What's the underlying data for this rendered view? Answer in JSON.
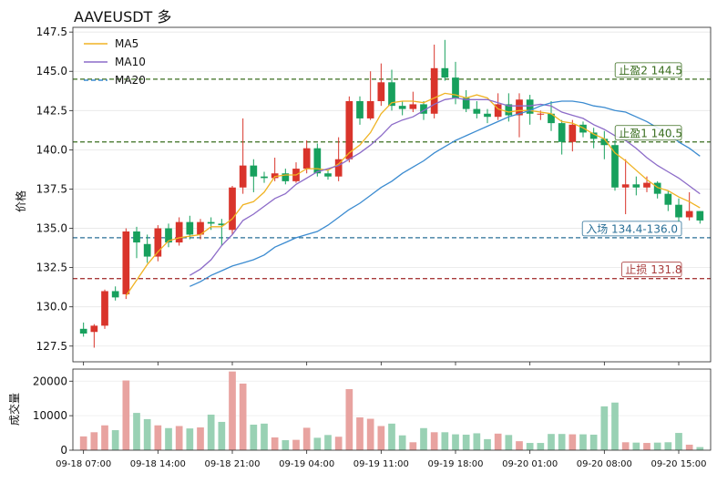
{
  "chart_data": [
    {
      "type": "candlestick",
      "title": "AAVEUSDT  多",
      "ylabel": "价格",
      "ylim": [
        126.5,
        147.8
      ],
      "yticks": [
        "127.5",
        "130.0",
        "132.5",
        "135.0",
        "137.5",
        "140.0",
        "142.5",
        "145.0",
        "147.5"
      ],
      "grid": true,
      "legend": {
        "position": "top-left",
        "entries": [
          "MA5",
          "MA10",
          "MA20"
        ]
      },
      "colors": {
        "up": "#d9342b",
        "down": "#17a05d",
        "ma5": "#f0b323",
        "ma10": "#8c6bc8",
        "ma20": "#3b8bd0"
      },
      "candles": [
        [
          128.6,
          128.3,
          129.0,
          128.1
        ],
        [
          128.4,
          128.8,
          128.9,
          127.4
        ],
        [
          128.8,
          131.0,
          131.1,
          128.6
        ],
        [
          131.0,
          130.6,
          131.3,
          130.4
        ],
        [
          130.8,
          134.8,
          135.0,
          130.5
        ],
        [
          134.8,
          134.1,
          135.1,
          133.1
        ],
        [
          134.0,
          133.2,
          134.6,
          132.8
        ],
        [
          133.2,
          135.0,
          135.2,
          132.9
        ],
        [
          135.0,
          134.1,
          135.3,
          133.8
        ],
        [
          134.1,
          135.4,
          135.7,
          133.9
        ],
        [
          135.4,
          134.6,
          135.8,
          134.3
        ],
        [
          134.6,
          135.4,
          135.6,
          134.3
        ],
        [
          135.4,
          135.3,
          135.7,
          134.9
        ],
        [
          135.3,
          135.2,
          135.6,
          133.9
        ],
        [
          134.9,
          137.6,
          137.7,
          134.6
        ],
        [
          137.6,
          139.0,
          142.0,
          137.2
        ],
        [
          139.0,
          138.3,
          139.4,
          137.3
        ],
        [
          138.3,
          138.2,
          138.6,
          137.9
        ],
        [
          138.2,
          138.5,
          139.5,
          138.0
        ],
        [
          138.5,
          138.0,
          138.8,
          137.8
        ],
        [
          138.0,
          138.8,
          139.2,
          137.9
        ],
        [
          138.8,
          140.1,
          140.6,
          138.5
        ],
        [
          140.1,
          138.5,
          140.4,
          138.3
        ],
        [
          138.5,
          138.3,
          138.7,
          138.1
        ],
        [
          138.3,
          139.4,
          140.8,
          138.0
        ],
        [
          139.4,
          143.1,
          143.4,
          139.2
        ],
        [
          143.1,
          142.0,
          143.4,
          141.6
        ],
        [
          142.0,
          143.1,
          145.0,
          141.9
        ],
        [
          143.1,
          144.3,
          145.5,
          142.8
        ],
        [
          144.3,
          142.8,
          145.1,
          142.5
        ],
        [
          142.8,
          142.6,
          143.1,
          142.2
        ],
        [
          142.6,
          142.9,
          143.7,
          142.4
        ],
        [
          142.9,
          142.3,
          143.1,
          141.9
        ],
        [
          142.3,
          145.2,
          146.7,
          142.0
        ],
        [
          145.2,
          144.6,
          147.0,
          144.4
        ],
        [
          144.6,
          143.3,
          145.6,
          142.9
        ],
        [
          143.3,
          142.6,
          143.8,
          142.4
        ],
        [
          142.6,
          142.3,
          143.1,
          142.0
        ],
        [
          142.3,
          142.1,
          142.6,
          141.7
        ],
        [
          142.1,
          142.9,
          143.6,
          141.9
        ],
        [
          142.9,
          142.2,
          143.6,
          141.8
        ],
        [
          142.2,
          143.2,
          143.6,
          140.8
        ],
        [
          143.2,
          142.3,
          143.5,
          141.6
        ],
        [
          142.3,
          142.3,
          142.5,
          141.9
        ],
        [
          142.3,
          141.7,
          143.1,
          141.2
        ],
        [
          141.7,
          140.5,
          141.9,
          139.7
        ],
        [
          140.5,
          141.6,
          141.9,
          139.9
        ],
        [
          141.6,
          141.1,
          141.8,
          140.8
        ],
        [
          141.1,
          140.7,
          141.4,
          140.1
        ],
        [
          140.7,
          140.3,
          141.2,
          139.4
        ],
        [
          140.3,
          137.6,
          140.6,
          137.4
        ],
        [
          137.6,
          137.8,
          139.4,
          135.9
        ],
        [
          137.8,
          137.6,
          138.3,
          137.1
        ],
        [
          137.6,
          137.9,
          138.3,
          137.3
        ],
        [
          137.9,
          137.2,
          138.0,
          136.9
        ],
        [
          137.2,
          136.5,
          137.4,
          136.1
        ],
        [
          136.5,
          135.7,
          136.9,
          135.4
        ],
        [
          135.7,
          136.1,
          137.3,
          135.5
        ],
        [
          136.1,
          135.5,
          136.1,
          135.3
        ]
      ],
      "ma5": [
        null,
        null,
        null,
        null,
        130.7,
        131.7,
        132.7,
        133.5,
        134.2,
        134.4,
        134.5,
        134.6,
        135.1,
        135.1,
        135.6,
        136.5,
        136.7,
        137.3,
        138.3,
        138.4,
        138.4,
        138.8,
        138.8,
        138.7,
        139.1,
        139.8,
        140.3,
        141.1,
        142.3,
        143.0,
        143.1,
        143.1,
        143.0,
        143.3,
        143.6,
        143.5,
        143.3,
        143.5,
        143.3,
        142.6,
        142.4,
        142.5,
        142.5,
        142.4,
        142.3,
        141.8,
        141.7,
        141.4,
        141.0,
        140.7,
        139.8,
        139.3,
        138.7,
        138.1,
        137.6,
        137.4,
        137.0,
        136.7,
        136.3
      ],
      "ma10": [
        null,
        null,
        null,
        null,
        null,
        null,
        null,
        null,
        null,
        null,
        132.0,
        132.4,
        133.0,
        133.9,
        134.6,
        135.5,
        135.9,
        136.4,
        136.9,
        137.2,
        137.8,
        138.2,
        138.6,
        138.8,
        139.0,
        139.4,
        139.8,
        140.3,
        140.9,
        141.6,
        141.9,
        142.1,
        142.5,
        142.9,
        143.2,
        143.3,
        143.2,
        143.2,
        143.2,
        143.0,
        142.8,
        142.8,
        142.8,
        142.9,
        142.8,
        142.4,
        142.2,
        142.0,
        141.6,
        141.3,
        140.9,
        140.6,
        140.1,
        139.5,
        139.0,
        138.6,
        138.2,
        137.7,
        137.2
      ],
      "ma20": [
        null,
        null,
        null,
        null,
        null,
        null,
        null,
        null,
        null,
        null,
        131.3,
        131.6,
        132.0,
        132.3,
        132.6,
        132.8,
        133.0,
        133.3,
        133.8,
        134.1,
        134.4,
        134.6,
        134.8,
        135.2,
        135.7,
        136.2,
        136.6,
        137.1,
        137.6,
        138.0,
        138.5,
        138.9,
        139.3,
        139.8,
        140.2,
        140.6,
        140.9,
        141.2,
        141.5,
        141.8,
        142.1,
        142.3,
        142.5,
        142.8,
        143.0,
        143.1,
        143.1,
        143.0,
        142.8,
        142.7,
        142.5,
        142.4,
        142.1,
        141.8,
        141.4,
        141.1,
        140.5,
        140.1,
        139.6
      ],
      "levels": [
        {
          "label": "止盈2 144.5",
          "value": 144.5,
          "color": "#3a6e1f"
        },
        {
          "label": "止盈1 140.5",
          "value": 140.5,
          "color": "#3a6e1f"
        },
        {
          "label": "入场 134.4-136.0",
          "value": 134.4,
          "color": "#2a6f97"
        },
        {
          "label": "止损 131.8",
          "value": 131.8,
          "color": "#a83b3b"
        }
      ]
    },
    {
      "type": "bar",
      "ylabel": "成交量",
      "ylim": [
        0,
        23500
      ],
      "yticks": [
        "0",
        "10000",
        "20000"
      ],
      "x_ticklabels": [
        "09-18 07:00",
        "09-18 14:00",
        "09-18 21:00",
        "09-19 04:00",
        "09-19 11:00",
        "09-19 18:00",
        "09-20 01:00",
        "09-20 08:00",
        "09-20 15:00"
      ],
      "colors": {
        "up": "#e8a3a0",
        "down": "#99d1b4"
      },
      "values": [
        4000,
        5200,
        7200,
        5800,
        20200,
        10800,
        9000,
        7200,
        6400,
        7000,
        6300,
        6600,
        10300,
        8200,
        22800,
        19300,
        7400,
        7700,
        3700,
        2900,
        3000,
        6500,
        3600,
        4400,
        3900,
        17700,
        9500,
        9100,
        7000,
        7700,
        4300,
        2300,
        6400,
        5200,
        5200,
        4600,
        4500,
        4900,
        3200,
        4800,
        4400,
        2600,
        2100,
        2100,
        4700,
        4700,
        4600,
        4600,
        4500,
        12700,
        13800,
        2300,
        2200,
        2100,
        2200,
        2300,
        5000,
        1600,
        900
      ],
      "up": [
        1,
        1,
        1,
        0,
        1,
        0,
        0,
        1,
        0,
        1,
        0,
        1,
        0,
        0,
        1,
        1,
        0,
        0,
        1,
        0,
        1,
        1,
        0,
        0,
        1,
        1,
        1,
        1,
        1,
        0,
        0,
        1,
        0,
        1,
        0,
        0,
        0,
        0,
        0,
        1,
        0,
        1,
        0,
        0,
        0,
        0,
        1,
        0,
        0,
        0,
        0,
        1,
        0,
        1,
        0,
        0,
        0,
        1,
        0
      ]
    }
  ]
}
